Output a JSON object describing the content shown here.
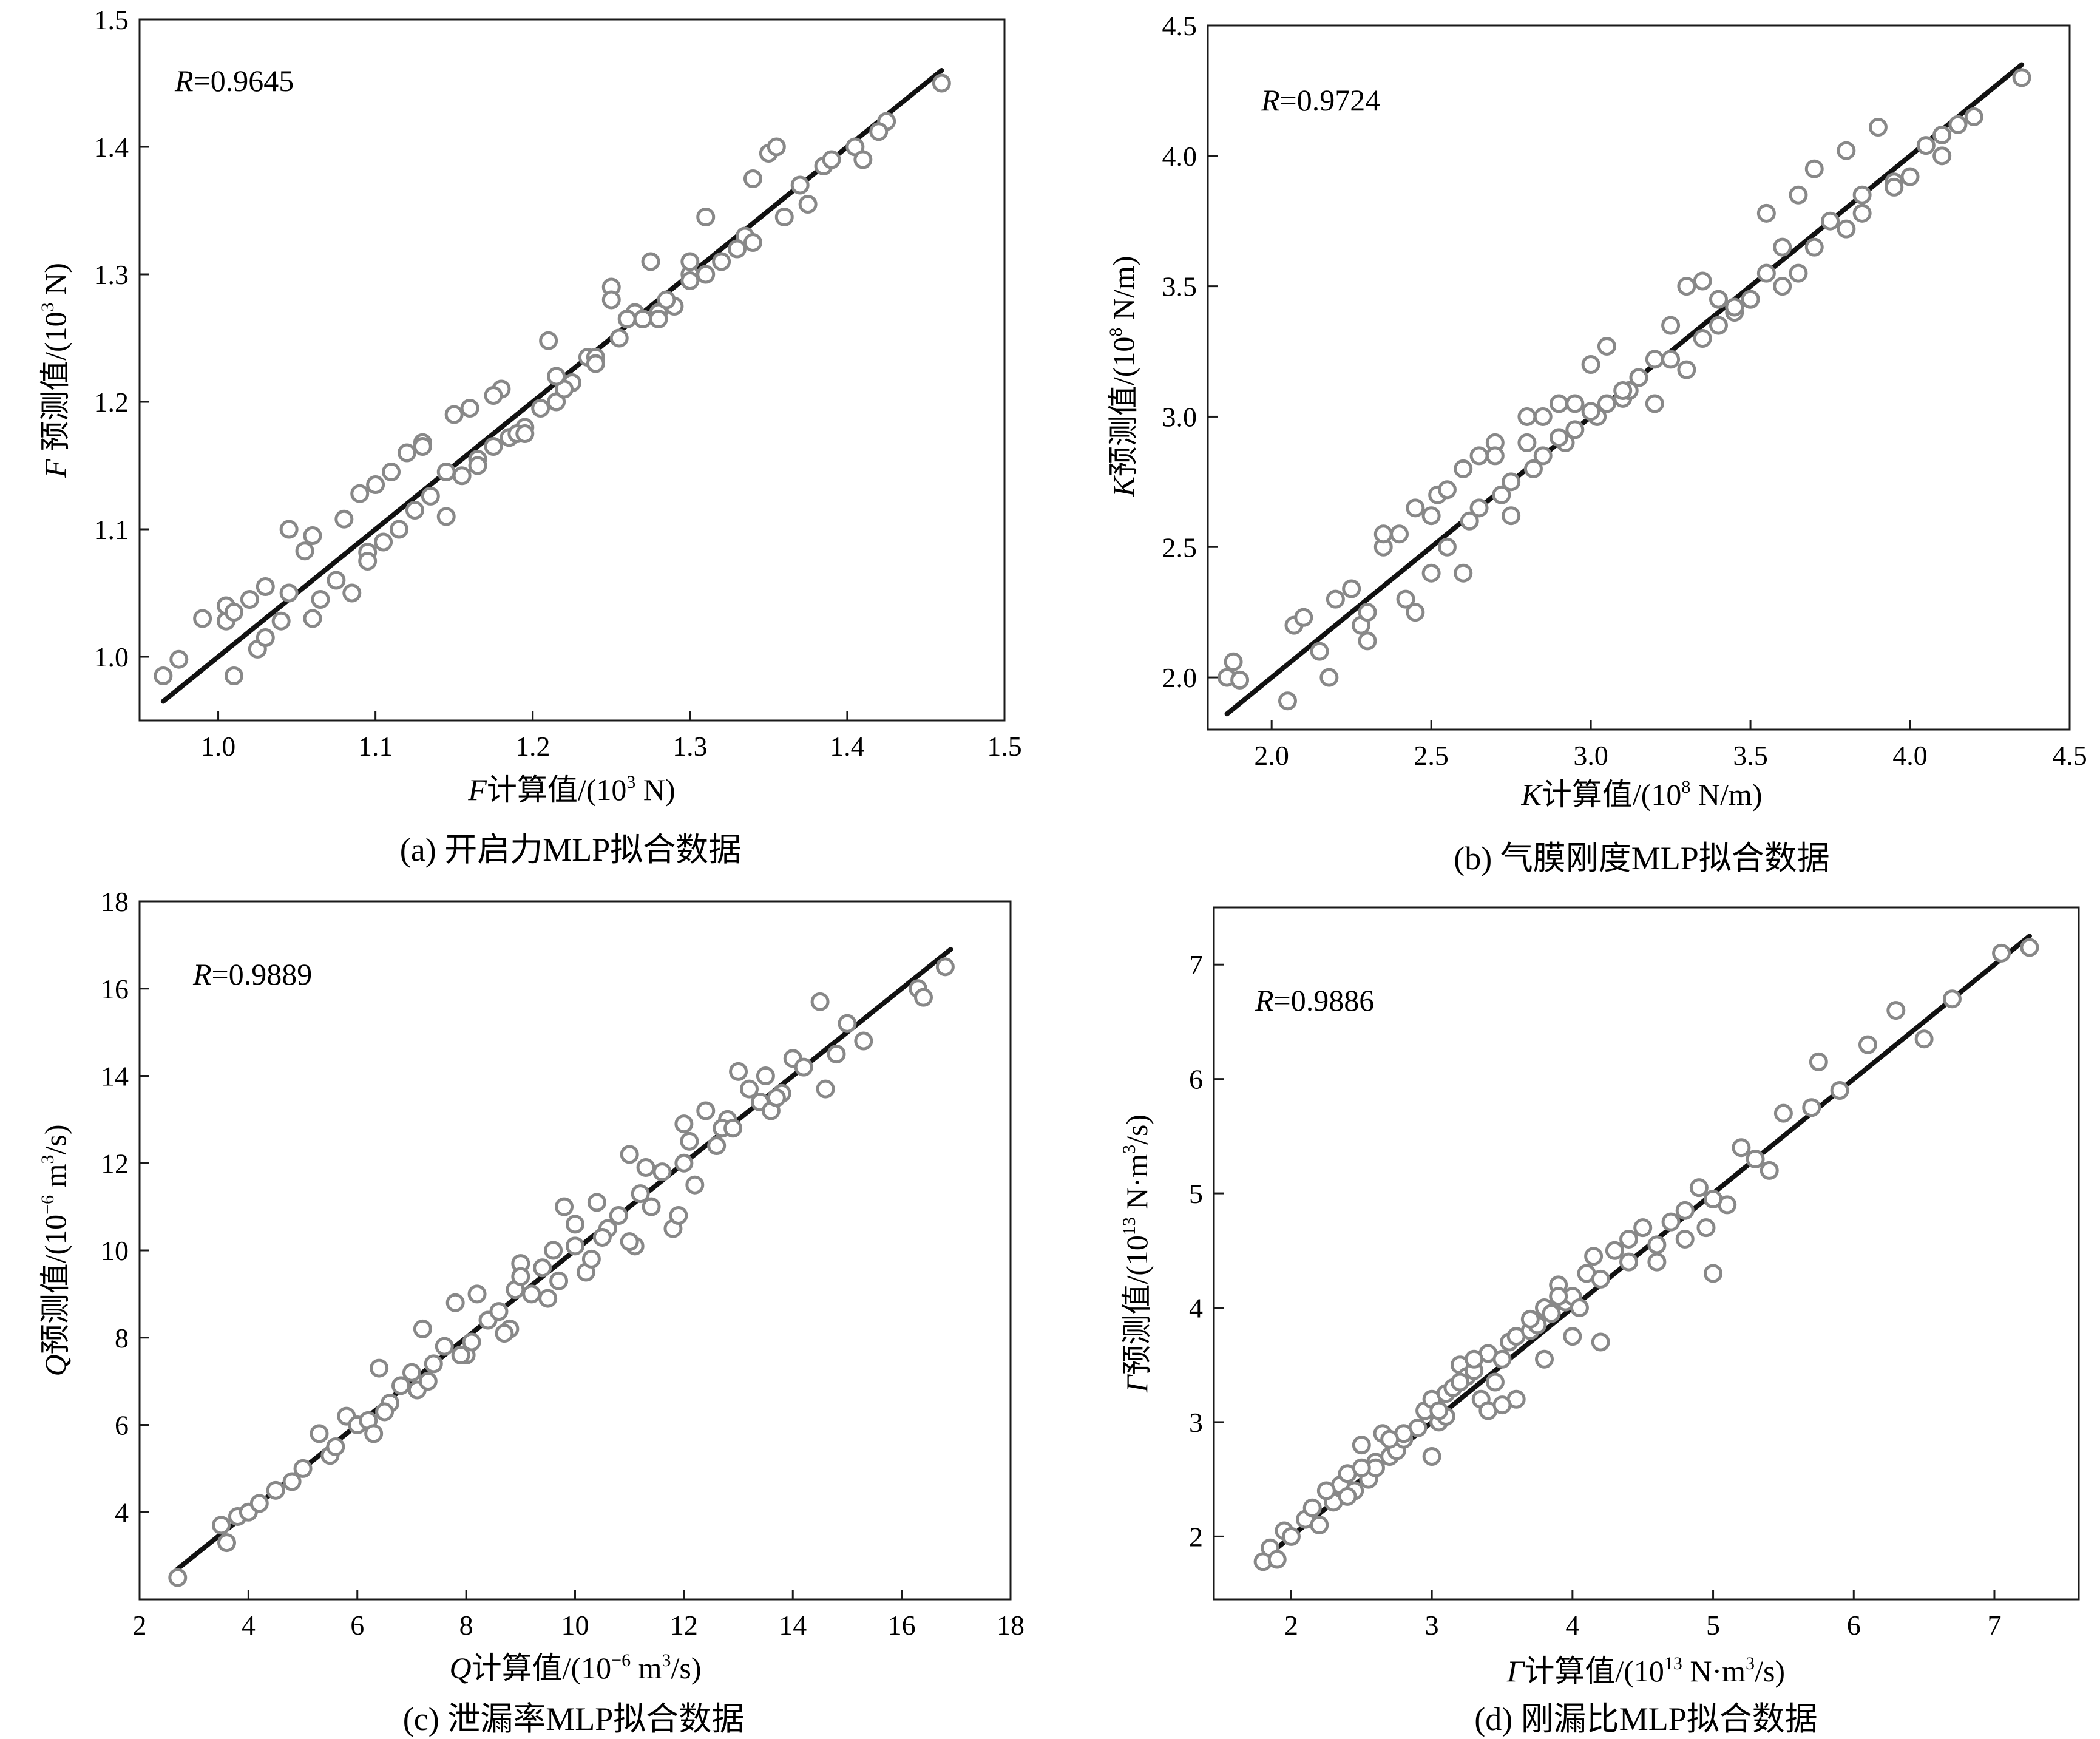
{
  "chart_data": [
    {
      "type": "scatter",
      "caption": "(a) 开启力MLP拟合数据",
      "r_label": {
        "var": "R",
        "value": "=0.9645"
      },
      "xlabel": {
        "var": "F",
        "text": "计算值/(10",
        "exp": "3",
        "unit": " N)"
      },
      "ylabel": {
        "var": "F",
        "text": " 预测值/(10",
        "exp": "3",
        "unit": " N)"
      },
      "xlim": [
        0.95,
        1.5
      ],
      "ylim": [
        0.95,
        1.5
      ],
      "xticks": [
        1.0,
        1.1,
        1.2,
        1.3,
        1.4,
        1.5
      ],
      "yticks": [
        1.0,
        1.1,
        1.2,
        1.3,
        1.4,
        1.5
      ],
      "tick_decimals": 1,
      "fit_line": {
        "x": [
          0.965,
          1.46
        ],
        "y": [
          0.965,
          1.46
        ]
      },
      "marker_color": "#888888",
      "line_color": "#111111",
      "points": {
        "x": [
          0.965,
          0.975,
          0.99,
          1.005,
          1.01,
          1.02,
          1.025,
          1.03,
          1.04,
          1.055,
          1.065,
          1.075,
          1.085,
          1.095,
          1.105,
          1.115,
          1.125,
          1.135,
          1.145,
          1.155,
          1.165,
          1.175,
          1.185,
          1.195,
          1.205,
          1.215,
          1.225,
          1.235,
          1.25,
          1.255,
          1.265,
          1.275,
          1.28,
          1.29,
          1.3,
          1.31,
          1.32,
          1.335,
          1.35,
          1.355,
          1.37,
          1.385,
          1.405,
          1.425,
          1.46,
          1.03,
          1.06,
          1.09,
          1.12,
          1.15,
          1.18,
          1.21,
          1.24,
          1.27,
          1.3,
          1.33,
          1.36,
          1.39,
          1.42,
          1.06,
          1.08,
          1.1,
          1.13,
          1.16,
          1.19,
          1.22,
          1.25,
          1.28,
          1.31,
          1.34,
          1.005,
          1.045,
          1.095,
          1.145,
          1.195,
          1.24,
          1.285,
          1.045,
          1.13,
          1.175,
          1.215,
          1.26,
          1.3,
          1.34,
          1.375,
          1.41,
          1.01,
          1.11,
          1.165
        ],
        "y": [
          0.985,
          0.998,
          1.03,
          1.028,
          0.985,
          1.045,
          1.006,
          1.015,
          1.028,
          1.083,
          1.045,
          1.06,
          1.05,
          1.082,
          1.09,
          1.1,
          1.115,
          1.126,
          1.145,
          1.142,
          1.155,
          1.165,
          1.172,
          1.18,
          1.195,
          1.2,
          1.215,
          1.235,
          1.29,
          1.25,
          1.27,
          1.31,
          1.27,
          1.275,
          1.3,
          1.345,
          1.31,
          1.33,
          1.395,
          1.4,
          1.37,
          1.385,
          1.4,
          1.42,
          1.45,
          1.055,
          1.095,
          1.128,
          1.16,
          1.19,
          1.21,
          1.248,
          1.235,
          1.265,
          1.295,
          1.32,
          1.345,
          1.39,
          1.412,
          1.03,
          1.108,
          1.135,
          1.168,
          1.195,
          1.175,
          1.21,
          1.28,
          1.265,
          1.3,
          1.325,
          1.04,
          1.05,
          1.075,
          1.11,
          1.175,
          1.23,
          1.28,
          1.1,
          1.165,
          1.205,
          1.22,
          1.265,
          1.31,
          1.375,
          1.355,
          1.39,
          1.035,
          1.145,
          1.15
        ]
      }
    },
    {
      "type": "scatter",
      "caption": "(b) 气膜刚度MLP拟合数据",
      "r_label": {
        "var": "R",
        "value": "=0.9724"
      },
      "xlabel": {
        "var": "K",
        "text": "计算值/(10",
        "exp": "8",
        "unit": " N/m)"
      },
      "ylabel": {
        "var": "K",
        "text": "预测值/(10",
        "exp": "8",
        "unit": " N/m)"
      },
      "xlim": [
        1.8,
        4.5
      ],
      "ylim": [
        1.8,
        4.5
      ],
      "xticks": [
        2.0,
        2.5,
        3.0,
        3.5,
        4.0,
        4.5
      ],
      "yticks": [
        2.0,
        2.5,
        3.0,
        3.5,
        4.0,
        4.5
      ],
      "tick_decimals": 1,
      "fit_line": {
        "x": [
          1.86,
          4.35
        ],
        "y": [
          1.86,
          4.35
        ]
      },
      "marker_color": "#888888",
      "line_color": "#111111",
      "points": {
        "x": [
          1.86,
          1.88,
          1.9,
          2.05,
          2.07,
          2.1,
          2.15,
          2.18,
          2.2,
          2.25,
          2.28,
          2.3,
          2.35,
          2.4,
          2.42,
          2.45,
          2.5,
          2.52,
          2.55,
          2.6,
          2.62,
          2.65,
          2.7,
          2.72,
          2.75,
          2.8,
          2.82,
          2.85,
          2.9,
          2.92,
          2.95,
          3.0,
          3.02,
          3.05,
          3.1,
          3.12,
          3.15,
          3.2,
          3.25,
          3.3,
          3.35,
          3.4,
          3.45,
          3.5,
          3.55,
          3.6,
          3.65,
          3.7,
          3.75,
          3.8,
          3.85,
          3.9,
          3.95,
          4.0,
          4.05,
          4.1,
          4.15,
          4.2,
          4.35,
          2.3,
          2.45,
          2.6,
          2.75,
          2.9,
          3.05,
          3.2,
          3.35,
          3.5,
          3.65,
          3.8,
          2.55,
          2.7,
          2.85,
          3.0,
          3.15,
          3.3,
          3.45,
          3.6,
          2.35,
          2.5,
          2.65,
          2.8,
          2.95,
          3.1,
          3.25,
          3.4,
          3.55,
          3.7,
          3.85,
          3.95,
          4.1
        ],
        "y": [
          2.0,
          2.06,
          1.99,
          1.91,
          2.2,
          2.23,
          2.1,
          2.0,
          2.3,
          2.34,
          2.2,
          2.25,
          2.5,
          2.55,
          2.3,
          2.65,
          2.4,
          2.7,
          2.5,
          2.8,
          2.6,
          2.65,
          2.9,
          2.7,
          2.75,
          3.0,
          2.8,
          2.85,
          3.05,
          2.9,
          2.95,
          3.2,
          3.0,
          3.05,
          3.07,
          3.1,
          3.15,
          3.22,
          3.35,
          3.5,
          3.3,
          3.35,
          3.4,
          3.45,
          3.78,
          3.5,
          3.85,
          3.95,
          3.75,
          4.02,
          3.85,
          4.11,
          3.9,
          3.92,
          4.04,
          4.08,
          4.12,
          4.15,
          4.3,
          2.14,
          2.25,
          2.4,
          2.62,
          2.92,
          3.27,
          3.05,
          3.52,
          3.45,
          3.55,
          3.72,
          2.72,
          2.85,
          3.0,
          3.02,
          3.15,
          3.18,
          3.42,
          3.65,
          2.55,
          2.62,
          2.85,
          2.9,
          3.05,
          3.1,
          3.22,
          3.45,
          3.55,
          3.65,
          3.78,
          3.88,
          4.0
        ]
      }
    },
    {
      "type": "scatter",
      "caption": "(c) 泄漏率MLP拟合数据",
      "r_label": {
        "var": "R",
        "value": "=0.9889"
      },
      "xlabel": {
        "var": "Q",
        "text": "计算值/(10",
        "exp": "−6",
        "unit": " m",
        "exp2": "3",
        "unit2": "/s)"
      },
      "ylabel": {
        "var": "Q",
        "text": "预测值/(10",
        "exp": "−6",
        "unit": " m",
        "exp2": "3",
        "unit2": "/s)"
      },
      "xlim": [
        2,
        18
      ],
      "ylim": [
        2,
        18
      ],
      "xticks": [
        2,
        4,
        6,
        8,
        10,
        12,
        14,
        16,
        18
      ],
      "yticks": [
        4,
        6,
        8,
        10,
        12,
        14,
        16,
        18
      ],
      "tick_decimals": 0,
      "fit_line": {
        "x": [
          2.7,
          16.9
        ],
        "y": [
          2.7,
          16.9
        ]
      },
      "marker_color": "#888888",
      "line_color": "#111111",
      "points": {
        "x": [
          2.7,
          3.5,
          3.6,
          3.8,
          4.0,
          4.2,
          4.5,
          4.8,
          5.0,
          5.3,
          5.5,
          5.8,
          6.0,
          6.2,
          6.4,
          6.6,
          6.8,
          7.0,
          7.2,
          7.4,
          7.6,
          7.8,
          8.0,
          8.2,
          8.4,
          8.6,
          8.8,
          9.0,
          9.2,
          9.4,
          9.6,
          9.8,
          10.0,
          10.2,
          10.4,
          10.6,
          10.8,
          11.0,
          11.2,
          11.4,
          11.6,
          11.8,
          12.0,
          12.2,
          12.4,
          12.6,
          12.8,
          13.0,
          13.2,
          13.4,
          13.6,
          13.8,
          14.0,
          14.2,
          14.5,
          14.8,
          15.0,
          15.3,
          16.3,
          16.4,
          16.8,
          6.3,
          7.1,
          7.9,
          8.7,
          9.5,
          10.3,
          11.1,
          11.9,
          12.7,
          13.5,
          5.6,
          6.5,
          7.3,
          8.1,
          8.9,
          9.7,
          10.5,
          11.3,
          12.1,
          12.9,
          13.7,
          14.6,
          9.0,
          10.0,
          11.0,
          12.0
        ],
        "y": [
          2.5,
          3.7,
          3.3,
          3.9,
          4.0,
          4.2,
          4.5,
          4.7,
          5.0,
          5.8,
          5.3,
          6.2,
          6.0,
          6.1,
          7.3,
          6.5,
          6.9,
          7.2,
          8.2,
          7.4,
          7.8,
          8.8,
          7.6,
          9.0,
          8.4,
          8.6,
          8.2,
          9.7,
          9.0,
          9.6,
          10.0,
          11.0,
          10.1,
          9.5,
          11.1,
          10.5,
          10.8,
          12.2,
          11.3,
          11.0,
          11.8,
          10.5,
          12.0,
          11.5,
          13.2,
          12.4,
          13.0,
          14.1,
          13.7,
          13.4,
          13.2,
          13.6,
          14.4,
          14.2,
          15.7,
          14.5,
          15.2,
          14.8,
          16.0,
          15.8,
          16.5,
          5.8,
          6.8,
          7.6,
          8.1,
          8.9,
          9.8,
          10.1,
          10.8,
          12.8,
          14.0,
          5.5,
          6.3,
          7.0,
          7.9,
          9.1,
          9.3,
          10.3,
          11.9,
          12.5,
          12.8,
          13.5,
          13.7,
          9.4,
          10.6,
          10.2,
          12.9
        ]
      }
    },
    {
      "type": "scatter",
      "caption": "(d) 刚漏比MLP拟合数据",
      "r_label": {
        "var": "R",
        "value": "=0.9886"
      },
      "xlabel": {
        "var": "Γ",
        "text": "计算值/(10",
        "exp": "13",
        "unit": " N·m",
        "exp2": "3",
        "unit2": "/s)"
      },
      "ylabel": {
        "var": "Γ",
        "text": "预测值/(10",
        "exp": "13",
        "unit": " N·m",
        "exp2": "3",
        "unit2": "/s)"
      },
      "xlim": [
        1.45,
        7.6
      ],
      "ylim": [
        1.45,
        7.5
      ],
      "xticks": [
        2,
        3,
        4,
        5,
        6,
        7
      ],
      "yticks": [
        2,
        3,
        4,
        5,
        6,
        7
      ],
      "tick_decimals": 0,
      "fit_line": {
        "x": [
          1.8,
          7.25
        ],
        "y": [
          1.8,
          7.25
        ]
      },
      "marker_color": "#888888",
      "line_color": "#111111",
      "points": {
        "x": [
          1.8,
          1.85,
          1.9,
          1.95,
          2.0,
          2.1,
          2.15,
          2.2,
          2.3,
          2.35,
          2.4,
          2.45,
          2.5,
          2.55,
          2.6,
          2.65,
          2.7,
          2.75,
          2.8,
          2.9,
          2.95,
          3.0,
          3.05,
          3.1,
          3.15,
          3.2,
          3.25,
          3.3,
          3.35,
          3.4,
          3.5,
          3.55,
          3.6,
          3.7,
          3.75,
          3.8,
          3.9,
          3.95,
          4.0,
          4.1,
          4.15,
          4.2,
          4.3,
          4.4,
          4.5,
          4.6,
          4.7,
          4.8,
          4.9,
          4.95,
          5.0,
          5.1,
          5.2,
          5.3,
          5.4,
          5.5,
          5.7,
          5.75,
          5.9,
          6.1,
          6.3,
          6.5,
          6.7,
          7.05,
          7.25,
          2.25,
          2.6,
          3.0,
          3.4,
          3.8,
          4.2,
          4.6,
          5.0,
          2.4,
          2.8,
          3.2,
          3.6,
          4.0,
          4.4,
          4.8,
          3.1,
          3.3,
          3.5,
          3.7,
          3.9,
          2.5,
          2.7,
          3.05,
          3.45,
          3.85,
          4.05
        ],
        "y": [
          1.78,
          1.9,
          1.8,
          2.05,
          2.0,
          2.15,
          2.25,
          2.1,
          2.3,
          2.45,
          2.55,
          2.4,
          2.8,
          2.5,
          2.65,
          2.9,
          2.7,
          2.75,
          2.85,
          2.95,
          3.1,
          3.2,
          3.0,
          3.25,
          3.3,
          3.5,
          3.4,
          3.45,
          3.2,
          3.6,
          3.55,
          3.7,
          3.75,
          3.8,
          3.85,
          4.0,
          4.2,
          4.05,
          4.1,
          4.3,
          4.45,
          4.25,
          4.5,
          4.6,
          4.7,
          4.55,
          4.75,
          4.85,
          5.05,
          4.7,
          4.3,
          4.9,
          5.4,
          5.3,
          5.2,
          5.7,
          5.75,
          6.15,
          5.9,
          6.3,
          6.6,
          6.35,
          6.7,
          7.1,
          7.15,
          2.4,
          2.6,
          2.7,
          3.1,
          3.55,
          3.7,
          4.4,
          4.95,
          2.35,
          2.9,
          3.35,
          3.2,
          3.75,
          4.4,
          4.6,
          3.05,
          3.55,
          3.15,
          3.9,
          4.1,
          2.6,
          2.85,
          3.1,
          3.35,
          3.95,
          4.0
        ]
      }
    }
  ]
}
